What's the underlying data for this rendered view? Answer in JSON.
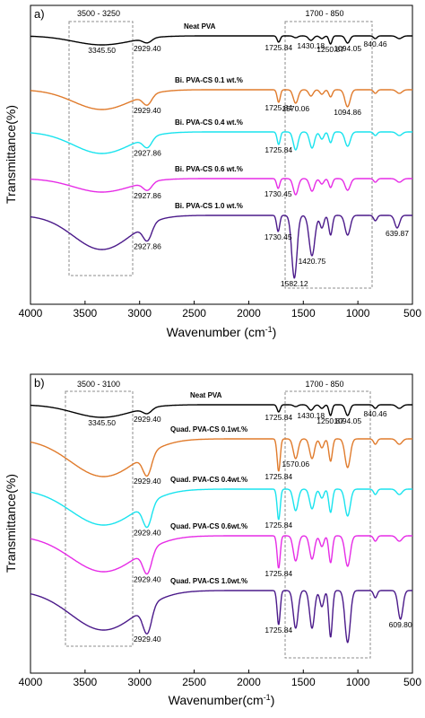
{
  "figure": {
    "ylabel": "Transmittance(%)",
    "panels": [
      {
        "label": "a)",
        "xlabel": "Wavenumber (cm",
        "xlabel_sup": "-1",
        "xlabel_end": ")",
        "range_left": "3500   -   3250",
        "range_right": "1700     -     850",
        "series_labels": [
          "Neat PVA",
          "Bi. PVA-CS 0.1 wt.%",
          "Bi. PVA-CS 0.4 wt.%",
          "Bi. PVA-CS 0.6 wt.%",
          "Bi. PVA-CS 1.0 wt.%"
        ],
        "annotations": [
          {
            "text": "3345.50",
            "wn": 3345.5,
            "series": 0,
            "below": true
          },
          {
            "text": "2929.40",
            "wn": 2929.4,
            "series": 0,
            "below": true
          },
          {
            "text": "1725.84",
            "wn": 1725.84,
            "series": 0,
            "below": true
          },
          {
            "text": "1430.18",
            "wn": 1430.18,
            "series": 0,
            "below": true
          },
          {
            "text": "1250.87",
            "wn": 1250.87,
            "series": 0,
            "below": true
          },
          {
            "text": "1094.05",
            "wn": 1094.05,
            "series": 0,
            "below": true
          },
          {
            "text": "840.46",
            "wn": 840.46,
            "series": 0,
            "below": true
          },
          {
            "text": "2929.40",
            "wn": 2929.4,
            "series": 1,
            "below": true
          },
          {
            "text": "1725.84",
            "wn": 1725.84,
            "series": 1,
            "below": true
          },
          {
            "text": "1570.06",
            "wn": 1570.06,
            "series": 1,
            "below": true
          },
          {
            "text": "1094.86",
            "wn": 1094.86,
            "series": 1,
            "below": true
          },
          {
            "text": "2927.86",
            "wn": 2927.86,
            "series": 2,
            "below": true
          },
          {
            "text": "1725.84",
            "wn": 1725.84,
            "series": 2,
            "below": true
          },
          {
            "text": "2927.86",
            "wn": 2927.86,
            "series": 3,
            "below": true
          },
          {
            "text": "1730.45",
            "wn": 1730.45,
            "series": 3,
            "below": true
          },
          {
            "text": "2927.86",
            "wn": 2927.86,
            "series": 4,
            "below": true
          },
          {
            "text": "1730.45",
            "wn": 1730.45,
            "series": 4,
            "below": true
          },
          {
            "text": "1582.12",
            "wn": 1582.12,
            "series": 4,
            "below": true
          },
          {
            "text": "1420.75",
            "wn": 1420.75,
            "series": 4,
            "below": true
          },
          {
            "text": "639.87",
            "wn": 639.87,
            "series": 4,
            "below": true
          }
        ]
      },
      {
        "label": "b)",
        "xlabel": "Wavenumber(cm",
        "xlabel_sup": "-1",
        "xlabel_end": ")",
        "range_left": "3500   -   3100",
        "range_right": "1700     -     850",
        "series_labels": [
          "Neat PVA",
          "Quad. PVA-CS 0.1wt.%",
          "Quad. PVA-CS 0.4wt.%",
          "Quad. PVA-CS 0.6wt.%",
          "Quad. PVA-CS 1.0wt.%"
        ],
        "annotations": [
          {
            "text": "3345.50",
            "wn": 3345.5,
            "series": 0,
            "below": true
          },
          {
            "text": "2929.40",
            "wn": 2929.4,
            "series": 0,
            "below": true
          },
          {
            "text": "1725.84",
            "wn": 1725.84,
            "series": 0,
            "below": true
          },
          {
            "text": "1430.18",
            "wn": 1430.18,
            "series": 0,
            "below": true
          },
          {
            "text": "1250.87",
            "wn": 1250.87,
            "series": 0,
            "below": true
          },
          {
            "text": "1094.05",
            "wn": 1094.05,
            "series": 0,
            "below": true
          },
          {
            "text": "840.46",
            "wn": 840.46,
            "series": 0,
            "below": true
          },
          {
            "text": "2929.40",
            "wn": 2929.4,
            "series": 1,
            "below": true
          },
          {
            "text": "1725.84",
            "wn": 1725.84,
            "series": 1,
            "below": true
          },
          {
            "text": "1570.06",
            "wn": 1570.06,
            "series": 1,
            "below": true
          },
          {
            "text": "2929.40",
            "wn": 2929.4,
            "series": 2,
            "below": true
          },
          {
            "text": "1725.84",
            "wn": 1725.84,
            "series": 2,
            "below": true
          },
          {
            "text": "2929.40",
            "wn": 2929.4,
            "series": 3,
            "below": true
          },
          {
            "text": "1725.84",
            "wn": 1725.84,
            "series": 3,
            "below": true
          },
          {
            "text": "2929.40",
            "wn": 2929.4,
            "series": 4,
            "below": true
          },
          {
            "text": "1725.84",
            "wn": 1725.84,
            "series": 4,
            "below": true
          },
          {
            "text": "609.80",
            "wn": 609.8,
            "series": 4,
            "below": true
          }
        ]
      }
    ]
  },
  "chart_data": [
    {
      "type": "line",
      "xlabel": "Wavenumber (cm-1)",
      "ylabel": "Transmittance(%)",
      "xlim": [
        4000,
        500
      ],
      "xticks": [
        4000,
        3500,
        3000,
        2500,
        2000,
        1500,
        1000,
        500
      ],
      "x_reversed": true,
      "series": [
        {
          "name": "Neat PVA",
          "color": "#000000",
          "baseline": 0,
          "peaks": [
            [
              3345.5,
              10,
              260
            ],
            [
              2929.4,
              5,
              40
            ],
            [
              1725.84,
              7,
              14
            ],
            [
              1570,
              2,
              20
            ],
            [
              1430.18,
              5,
              22
            ],
            [
              1330,
              3,
              18
            ],
            [
              1250.87,
              9,
              14
            ],
            [
              1094.05,
              8,
              20
            ],
            [
              840.46,
              3,
              16
            ],
            [
              620,
              3,
              25
            ]
          ]
        },
        {
          "name": "Bi. PVA-CS 0.1 wt.%",
          "color": "#e07b2c",
          "baseline": 0,
          "peaks": [
            [
              3345.5,
              22,
              260
            ],
            [
              2929.4,
              11,
              40
            ],
            [
              1725.84,
              14,
              14
            ],
            [
              1570.06,
              15,
              22
            ],
            [
              1430,
              7,
              20
            ],
            [
              1330,
              5,
              18
            ],
            [
              1250,
              8,
              16
            ],
            [
              1094.86,
              19,
              24
            ],
            [
              840,
              4,
              16
            ],
            [
              620,
              4,
              25
            ]
          ]
        },
        {
          "name": "Bi. PVA-CS 0.4 wt.%",
          "color": "#19e3ee",
          "baseline": 0,
          "peaks": [
            [
              3345.5,
              24,
              260
            ],
            [
              2927.86,
              11,
              40
            ],
            [
              1725.84,
              14,
              14
            ],
            [
              1570,
              20,
              22
            ],
            [
              1420,
              18,
              22
            ],
            [
              1330,
              8,
              18
            ],
            [
              1250,
              12,
              16
            ],
            [
              1094,
              16,
              24
            ],
            [
              840,
              4,
              16
            ],
            [
              620,
              4,
              25
            ]
          ]
        },
        {
          "name": "Bi. PVA-CS 0.6 wt.%",
          "color": "#e62ce6",
          "baseline": 0,
          "peaks": [
            [
              3345.5,
              15,
              260
            ],
            [
              2927.86,
              9,
              40
            ],
            [
              1730.45,
              11,
              14
            ],
            [
              1570,
              18,
              22
            ],
            [
              1420,
              14,
              22
            ],
            [
              1330,
              6,
              18
            ],
            [
              1250,
              10,
              16
            ],
            [
              1094,
              13,
              24
            ],
            [
              840,
              4,
              16
            ],
            [
              620,
              4,
              25
            ]
          ]
        },
        {
          "name": "Bi. PVA-CS 1.0 wt.%",
          "color": "#4b1a8a",
          "baseline": 0,
          "peaks": [
            [
              3345.5,
              38,
              260
            ],
            [
              2927.86,
              18,
              40
            ],
            [
              1730.45,
              18,
              14
            ],
            [
              1582.12,
              70,
              24
            ],
            [
              1420.75,
              45,
              26
            ],
            [
              1330,
              14,
              18
            ],
            [
              1250,
              22,
              16
            ],
            [
              1094,
              22,
              24
            ],
            [
              840,
              6,
              16
            ],
            [
              639.87,
              14,
              22
            ]
          ]
        }
      ]
    },
    {
      "type": "line",
      "xlabel": "Wavenumber(cm-1)",
      "ylabel": "Transmittance(%)",
      "xlim": [
        4000,
        500
      ],
      "xticks": [
        4000,
        3500,
        3000,
        2500,
        2000,
        1500,
        1000,
        500
      ],
      "x_reversed": true,
      "series": [
        {
          "name": "Neat PVA",
          "color": "#000000",
          "baseline": 0,
          "peaks": [
            [
              3345.5,
              14,
              260
            ],
            [
              2929.4,
              6,
              40
            ],
            [
              1725.84,
              8,
              14
            ],
            [
              1570,
              2,
              20
            ],
            [
              1430.18,
              6,
              22
            ],
            [
              1330,
              4,
              18
            ],
            [
              1250.87,
              12,
              14
            ],
            [
              1094.05,
              12,
              20
            ],
            [
              840.46,
              4,
              16
            ],
            [
              620,
              4,
              25
            ]
          ]
        },
        {
          "name": "Quad. PVA-CS 0.1wt.%",
          "color": "#e07b2c",
          "baseline": 0,
          "peaks": [
            [
              3330,
              42,
              300
            ],
            [
              2929.4,
              24,
              40
            ],
            [
              1725.84,
              36,
              14
            ],
            [
              1570.06,
              22,
              22
            ],
            [
              1420,
              22,
              22
            ],
            [
              1330,
              10,
              18
            ],
            [
              1250,
              25,
              16
            ],
            [
              1094,
              32,
              24
            ],
            [
              840,
              6,
              16
            ],
            [
              620,
              6,
              25
            ]
          ]
        },
        {
          "name": "Quad. PVA-CS 0.4wt.%",
          "color": "#19e3ee",
          "baseline": 0,
          "peaks": [
            [
              3330,
              40,
              300
            ],
            [
              2929.4,
              26,
              40
            ],
            [
              1725.84,
              34,
              14
            ],
            [
              1570,
              24,
              22
            ],
            [
              1420,
              22,
              22
            ],
            [
              1330,
              10,
              18
            ],
            [
              1250,
              26,
              16
            ],
            [
              1094,
              30,
              24
            ],
            [
              840,
              6,
              16
            ],
            [
              620,
              6,
              25
            ]
          ]
        },
        {
          "name": "Quad. PVA-CS 0.6wt.%",
          "color": "#e62ce6",
          "baseline": 0,
          "peaks": [
            [
              3330,
              40,
              300
            ],
            [
              2929.4,
              26,
              40
            ],
            [
              1725.84,
              36,
              14
            ],
            [
              1570,
              28,
              22
            ],
            [
              1420,
              26,
              22
            ],
            [
              1330,
              12,
              18
            ],
            [
              1250,
              30,
              16
            ],
            [
              1094,
              34,
              24
            ],
            [
              840,
              6,
              16
            ],
            [
              620,
              6,
              25
            ]
          ]
        },
        {
          "name": "Quad. PVA-CS 1.0wt.%",
          "color": "#4b1a8a",
          "baseline": 0,
          "peaks": [
            [
              3330,
              44,
              300
            ],
            [
              2929.4,
              30,
              40
            ],
            [
              1725.84,
              38,
              14
            ],
            [
              1570,
              42,
              22
            ],
            [
              1420,
              42,
              22
            ],
            [
              1330,
              18,
              18
            ],
            [
              1250,
              52,
              16
            ],
            [
              1094,
              58,
              24
            ],
            [
              840,
              8,
              16
            ],
            [
              609.8,
              32,
              22
            ]
          ]
        }
      ]
    }
  ]
}
